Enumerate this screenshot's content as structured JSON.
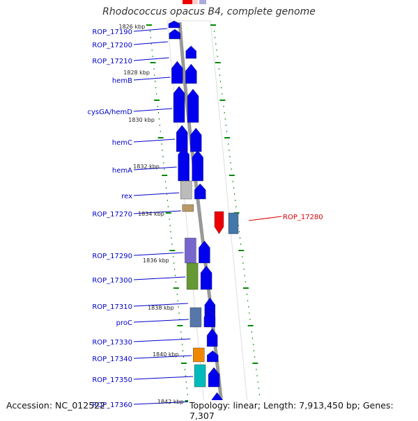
{
  "title": "Rhodococcus opacus B4, complete genome",
  "footer": {
    "accession": "Accession: NC_012522",
    "summary": "Topology: linear; Length: 7,913,450 bp; Genes: 7,307"
  },
  "colors": {
    "blue": "#0000ee",
    "label": "#0000cc",
    "highlight": "#dd0000",
    "axis": "#999999",
    "tick": "#008800"
  },
  "kbp_labels": [
    "1826 kbp",
    "1828 kbp",
    "1830 kbp",
    "1832 kbp",
    "1834 kbp",
    "1836 kbp",
    "1838 kbp",
    "1840 kbp",
    "1842 kbp"
  ],
  "genes": [
    {
      "label": "ROP_17190",
      "color": "#0000ee"
    },
    {
      "label": "ROP_17200",
      "color": "#0000ee"
    },
    {
      "label": "ROP_17210",
      "color": "#0000ee"
    },
    {
      "label": "hemB",
      "color": "#0000ee"
    },
    {
      "label": "cysGA/hemD",
      "color": "#0000ee"
    },
    {
      "label": "hemC",
      "color": "#0000ee"
    },
    {
      "label": "hemA",
      "color": "#0000ee"
    },
    {
      "label": "rex",
      "color": "#bbbbbb"
    },
    {
      "label": "ROP_17270",
      "color": "#bb9966"
    },
    {
      "label": "ROP_17280",
      "color": "#ee0000"
    },
    {
      "label": "ROP_17290",
      "color": "#7766cc"
    },
    {
      "label": "ROP_17300",
      "color": "#669933"
    },
    {
      "label": "ROP_17310",
      "color": "#0000ee"
    },
    {
      "label": "proC",
      "color": "#5577aa"
    },
    {
      "label": "ROP_17330",
      "color": "#0000ee"
    },
    {
      "label": "ROP_17340",
      "color": "#ee8800"
    },
    {
      "label": "ROP_17350",
      "color": "#00bbbb"
    },
    {
      "label": "ROP_17360",
      "color": "#0000ee"
    }
  ]
}
